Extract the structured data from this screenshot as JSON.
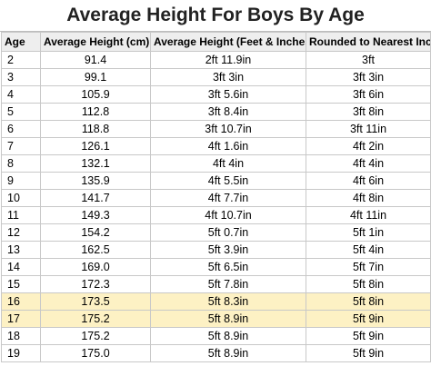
{
  "title": "Average Height For Boys By Age",
  "columns": [
    "Age",
    "Average Height (cm)",
    "Average Height (Feet & Inches)",
    "Rounded to Nearest Inch"
  ],
  "highlight_color": "#fdf1c4",
  "rows": [
    {
      "age": "2",
      "cm": "91.4",
      "ft_in": "2ft 11.9in",
      "rounded": "3ft",
      "highlight": false
    },
    {
      "age": "3",
      "cm": "99.1",
      "ft_in": "3ft 3in",
      "rounded": "3ft 3in",
      "highlight": false
    },
    {
      "age": "4",
      "cm": "105.9",
      "ft_in": "3ft 5.6in",
      "rounded": "3ft 6in",
      "highlight": false
    },
    {
      "age": "5",
      "cm": "112.8",
      "ft_in": "3ft 8.4in",
      "rounded": "3ft 8in",
      "highlight": false
    },
    {
      "age": "6",
      "cm": "118.8",
      "ft_in": "3ft 10.7in",
      "rounded": "3ft 11in",
      "highlight": false
    },
    {
      "age": "7",
      "cm": "126.1",
      "ft_in": "4ft 1.6in",
      "rounded": "4ft 2in",
      "highlight": false
    },
    {
      "age": "8",
      "cm": "132.1",
      "ft_in": "4ft 4in",
      "rounded": "4ft 4in",
      "highlight": false
    },
    {
      "age": "9",
      "cm": "135.9",
      "ft_in": "4ft 5.5in",
      "rounded": "4ft 6in",
      "highlight": false
    },
    {
      "age": "10",
      "cm": "141.7",
      "ft_in": "4ft 7.7in",
      "rounded": "4ft 8in",
      "highlight": false
    },
    {
      "age": "11",
      "cm": "149.3",
      "ft_in": "4ft 10.7in",
      "rounded": "4ft 11in",
      "highlight": false
    },
    {
      "age": "12",
      "cm": "154.2",
      "ft_in": "5ft 0.7in",
      "rounded": "5ft 1in",
      "highlight": false
    },
    {
      "age": "13",
      "cm": "162.5",
      "ft_in": "5ft 3.9in",
      "rounded": "5ft 4in",
      "highlight": false
    },
    {
      "age": "14",
      "cm": "169.0",
      "ft_in": "5ft 6.5in",
      "rounded": "5ft 7in",
      "highlight": false
    },
    {
      "age": "15",
      "cm": "172.3",
      "ft_in": "5ft 7.8in",
      "rounded": "5ft 8in",
      "highlight": false
    },
    {
      "age": "16",
      "cm": "173.5",
      "ft_in": "5ft 8.3in",
      "rounded": "5ft 8in",
      "highlight": true
    },
    {
      "age": "17",
      "cm": "175.2",
      "ft_in": "5ft 8.9in",
      "rounded": "5ft 9in",
      "highlight": true
    },
    {
      "age": "18",
      "cm": "175.2",
      "ft_in": "5ft 8.9in",
      "rounded": "5ft 9in",
      "highlight": false
    },
    {
      "age": "19",
      "cm": "175.0",
      "ft_in": "5ft 8.9in",
      "rounded": "5ft 9in",
      "highlight": false
    }
  ]
}
